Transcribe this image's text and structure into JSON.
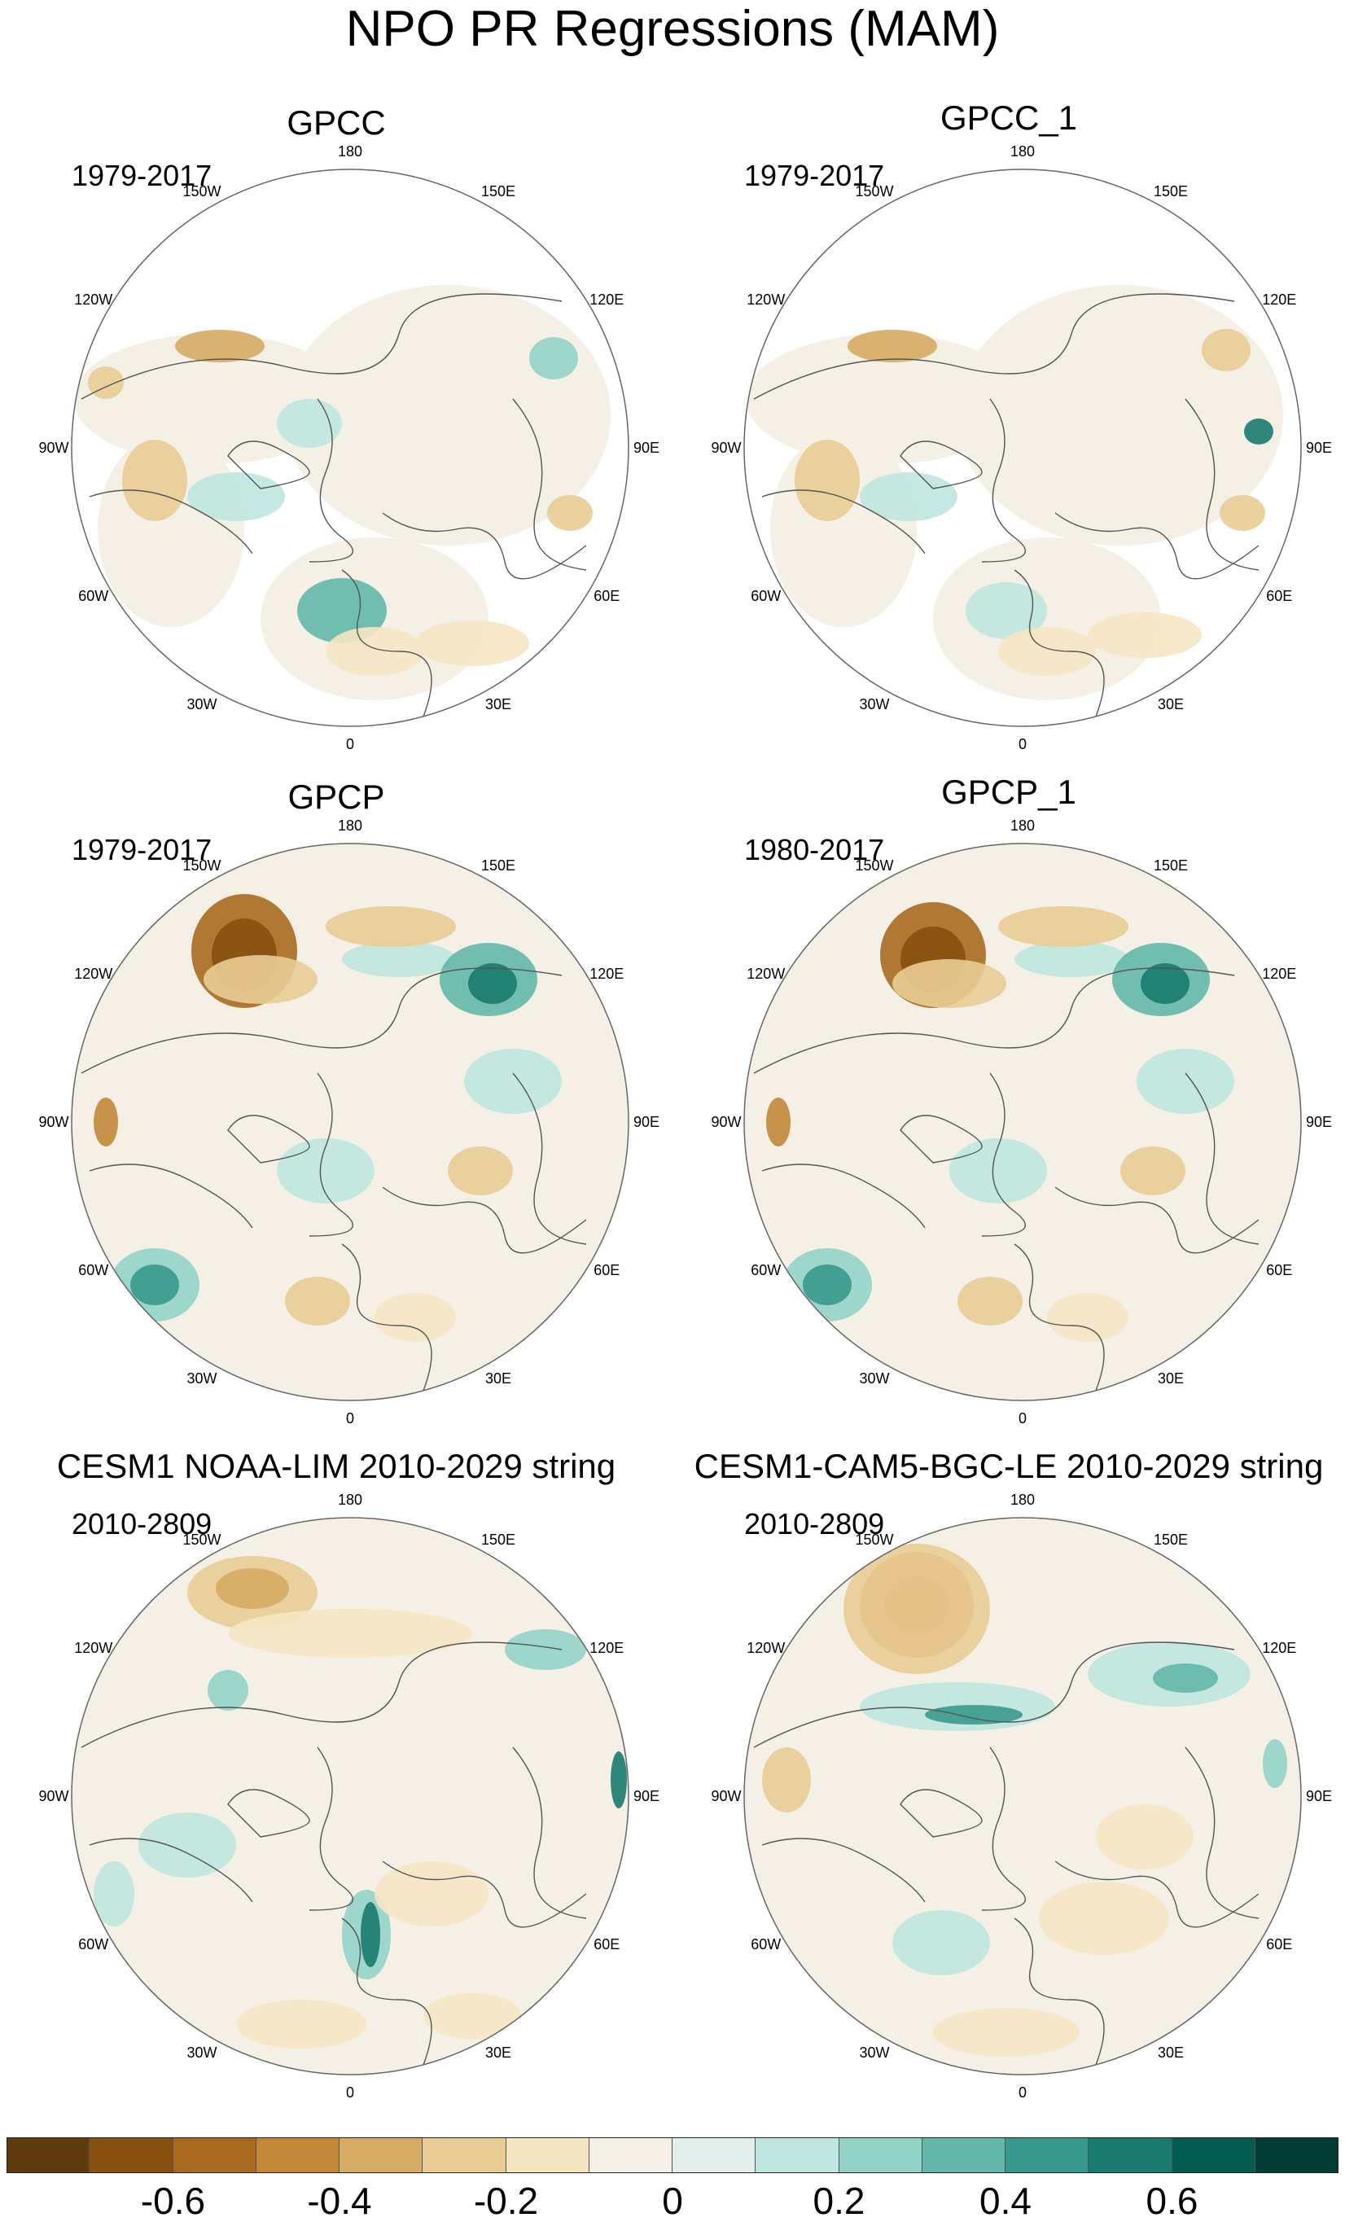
{
  "title": "NPO PR Regressions (MAM)",
  "longitude_labels": [
    "180",
    "150E",
    "120E",
    "90E",
    "60E",
    "30E",
    "0",
    "30W",
    "60W",
    "90W",
    "120W",
    "150W"
  ],
  "panels": [
    {
      "title": "GPCC",
      "years": "1979-2017",
      "coverage": "land"
    },
    {
      "title": "GPCC_1",
      "years": "1979-2017",
      "coverage": "land"
    },
    {
      "title": "GPCP",
      "years": "1979-2017",
      "coverage": "global"
    },
    {
      "title": "GPCP_1",
      "years": "1980-2017",
      "coverage": "global"
    },
    {
      "title": "CESM1 NOAA-LIM 2010-2029 string",
      "years": "2010-2809",
      "coverage": "global"
    },
    {
      "title": "CESM1-CAM5-BGC-LE 2010-2029 string",
      "years": "2010-2809",
      "coverage": "global"
    }
  ],
  "colorbar": {
    "colors": [
      "#5e3b0e",
      "#87500f",
      "#a96a1f",
      "#c28838",
      "#d6ab63",
      "#e9cc94",
      "#f5e6c3",
      "#f4f0e6",
      "#e2efec",
      "#bfe6df",
      "#93d3c7",
      "#63b8aa",
      "#379a8c",
      "#187b6e",
      "#045c50",
      "#013d34"
    ],
    "labels": [
      "-0.6",
      "-0.4",
      "-0.2",
      "0",
      "0.2",
      "0.4",
      "0.6"
    ],
    "label_values": [
      -0.6,
      -0.4,
      -0.2,
      0,
      0.2,
      0.4,
      0.6
    ],
    "min": -0.8,
    "max": 0.8
  }
}
